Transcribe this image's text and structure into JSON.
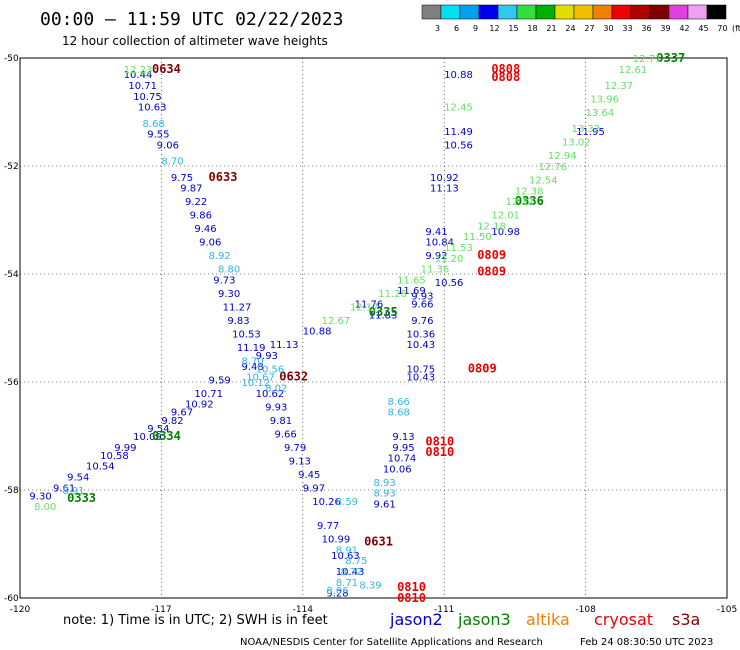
{
  "header": {
    "title": "00:00 — 11:59 UTC 02/22/2023",
    "subtitle": "12 hour collection of altimeter wave heights"
  },
  "colorbar": {
    "unit": "(ft)",
    "colors": [
      "#808080",
      "#00e0f0",
      "#00a0f0",
      "#0000ee",
      "#30c8f0",
      "#30e040",
      "#00b000",
      "#e0e000",
      "#f0c000",
      "#f08000",
      "#ee0000",
      "#b00000",
      "#800000",
      "#e040e0",
      "#f0a0f0",
      "#000000"
    ],
    "labels": [
      "3",
      "6",
      "9",
      "12",
      "15",
      "18",
      "21",
      "24",
      "27",
      "30",
      "33",
      "36",
      "39",
      "42",
      "45",
      "70"
    ]
  },
  "chart_data": {
    "type": "scatter",
    "title": "00:00 — 11:59 UTC 02/22/2023",
    "xlim": [
      -120,
      -105
    ],
    "ylim": [
      -60,
      -50
    ],
    "x_ticks": [
      "-120",
      "-117",
      "-114",
      "-111",
      "-108",
      "-105"
    ],
    "y_ticks": [
      "-50",
      "-52",
      "-54",
      "-56",
      "-58",
      "-60"
    ],
    "x_tick_values": [
      -120,
      -117,
      -114,
      -111,
      -108,
      -105
    ],
    "y_tick_values": [
      -50,
      -52,
      -54,
      -56,
      -58,
      -60
    ],
    "series": [
      {
        "name": "jason2",
        "color": "#0000cc",
        "points": [
          {
            "x": -117.8,
            "y": -50.3,
            "v": "10.44"
          },
          {
            "x": -117.7,
            "y": -50.5,
            "v": "10.71"
          },
          {
            "x": -117.6,
            "y": -50.7,
            "v": "10.75"
          },
          {
            "x": -117.5,
            "y": -50.9,
            "v": "10.63"
          },
          {
            "x": -117.3,
            "y": -51.4,
            "v": "9.55"
          },
          {
            "x": -117.1,
            "y": -51.6,
            "v": "9.06"
          },
          {
            "x": -116.8,
            "y": -52.2,
            "v": "9.75"
          },
          {
            "x": -116.6,
            "y": -52.4,
            "v": "9.87"
          },
          {
            "x": -116.5,
            "y": -52.65,
            "v": "9.22"
          },
          {
            "x": -116.4,
            "y": -52.9,
            "v": "9.86"
          },
          {
            "x": -116.3,
            "y": -53.15,
            "v": "9.46"
          },
          {
            "x": -116.2,
            "y": -53.4,
            "v": "9.06"
          },
          {
            "x": -115.9,
            "y": -54.1,
            "v": "9.73"
          },
          {
            "x": -115.8,
            "y": -54.35,
            "v": "9.30"
          },
          {
            "x": -115.7,
            "y": -54.6,
            "v": "11.27"
          },
          {
            "x": -115.6,
            "y": -54.85,
            "v": "9.83"
          },
          {
            "x": -115.5,
            "y": -55.1,
            "v": "10.53"
          },
          {
            "x": -115.4,
            "y": -55.35,
            "v": "11.19"
          },
          {
            "x": -115.0,
            "y": -56.2,
            "v": "10.62"
          },
          {
            "x": -114.8,
            "y": -56.45,
            "v": "9.93"
          },
          {
            "x": -114.7,
            "y": -56.7,
            "v": "9.81"
          },
          {
            "x": -114.6,
            "y": -56.95,
            "v": "9.66"
          },
          {
            "x": -114.4,
            "y": -57.2,
            "v": "9.79"
          },
          {
            "x": -114.3,
            "y": -57.45,
            "v": "9.13"
          },
          {
            "x": -114.1,
            "y": -57.7,
            "v": "9.45"
          },
          {
            "x": -114.0,
            "y": -57.95,
            "v": "9.97"
          },
          {
            "x": -113.8,
            "y": -58.2,
            "v": "10.26"
          },
          {
            "x": -113.7,
            "y": -58.65,
            "v": "9.77"
          },
          {
            "x": -113.6,
            "y": -58.9,
            "v": "10.99"
          },
          {
            "x": -113.4,
            "y": -59.2,
            "v": "10.63"
          },
          {
            "x": -113.3,
            "y": -59.5,
            "v": "10.43"
          },
          {
            "x": -113.5,
            "y": -59.9,
            "v": "9.28"
          },
          {
            "x": -116.0,
            "y": -55.95,
            "v": "9.59"
          },
          {
            "x": -116.3,
            "y": -56.2,
            "v": "10.71"
          },
          {
            "x": -116.5,
            "y": -56.4,
            "v": "10.92"
          },
          {
            "x": -116.8,
            "y": -56.55,
            "v": "9.67"
          },
          {
            "x": -117.0,
            "y": -56.7,
            "v": "9.82"
          },
          {
            "x": -117.3,
            "y": -56.85,
            "v": "9.54"
          },
          {
            "x": -117.6,
            "y": -57.0,
            "v": "10.09"
          },
          {
            "x": -118.0,
            "y": -57.2,
            "v": "9.99"
          },
          {
            "x": -118.3,
            "y": -57.35,
            "v": "10.58"
          },
          {
            "x": -118.6,
            "y": -57.55,
            "v": "10.54"
          },
          {
            "x": -119.0,
            "y": -57.75,
            "v": "9.54"
          },
          {
            "x": -119.3,
            "y": -57.95,
            "v": "9.61"
          },
          {
            "x": -119.8,
            "y": -58.1,
            "v": "9.30"
          },
          {
            "x": -115.3,
            "y": -55.7,
            "v": "9.48"
          },
          {
            "x": -115.0,
            "y": -55.5,
            "v": "9.93"
          },
          {
            "x": -114.7,
            "y": -55.3,
            "v": "11.13"
          },
          {
            "x": -114.0,
            "y": -55.05,
            "v": "10.88"
          },
          {
            "x": -112.9,
            "y": -54.55,
            "v": "11.76"
          },
          {
            "x": -112.6,
            "y": -54.75,
            "v": "11.83"
          },
          {
            "x": -112.0,
            "y": -54.3,
            "v": "11.69"
          },
          {
            "x": -111.7,
            "y": -54.4,
            "v": "9.93"
          },
          {
            "x": -111.7,
            "y": -54.55,
            "v": "9.66"
          },
          {
            "x": -111.7,
            "y": -54.85,
            "v": "9.76"
          },
          {
            "x": -111.8,
            "y": -55.1,
            "v": "10.36"
          },
          {
            "x": -111.8,
            "y": -55.3,
            "v": "10.43"
          },
          {
            "x": -111.8,
            "y": -55.75,
            "v": "10.75"
          },
          {
            "x": -111.8,
            "y": -55.9,
            "v": "10.43"
          },
          {
            "x": -111.2,
            "y": -54.15,
            "v": "10.56"
          },
          {
            "x": -111.4,
            "y": -53.65,
            "v": "9.92"
          },
          {
            "x": -111.4,
            "y": -53.4,
            "v": "10.84"
          },
          {
            "x": -111.4,
            "y": -53.2,
            "v": "9.41"
          },
          {
            "x": -111.3,
            "y": -52.4,
            "v": "11.13"
          },
          {
            "x": -111.3,
            "y": -52.2,
            "v": "10.92"
          },
          {
            "x": -111.0,
            "y": -51.6,
            "v": "10.56"
          },
          {
            "x": -111.0,
            "y": -51.35,
            "v": "11.49"
          },
          {
            "x": -110.0,
            "y": -53.2,
            "v": "10.98"
          },
          {
            "x": -108.2,
            "y": -51.35,
            "v": "11.95"
          },
          {
            "x": -111.0,
            "y": -50.3,
            "v": "10.88"
          },
          {
            "x": -112.1,
            "y": -57.0,
            "v": "9.13"
          },
          {
            "x": -112.1,
            "y": -57.2,
            "v": "9.95"
          },
          {
            "x": -112.2,
            "y": -57.4,
            "v": "10.74"
          },
          {
            "x": -112.3,
            "y": -57.6,
            "v": "10.06"
          },
          {
            "x": -112.5,
            "y": -58.25,
            "v": "9.61"
          }
        ]
      },
      {
        "name": "jason3",
        "color": "#008000",
        "points": []
      },
      {
        "name": "altika",
        "color": "#f08000",
        "points": []
      },
      {
        "name": "cryosat",
        "color": "#ee0000",
        "points": [
          {
            "x": -110.0,
            "y": -50.2,
            "v": "0808"
          },
          {
            "x": -110.0,
            "y": -50.35,
            "v": "0808"
          },
          {
            "x": -110.3,
            "y": -53.65,
            "v": "0809"
          },
          {
            "x": -110.3,
            "y": -53.95,
            "v": "0809"
          },
          {
            "x": -110.5,
            "y": -55.75,
            "v": "0809"
          },
          {
            "x": -111.4,
            "y": -57.1,
            "v": "0810"
          },
          {
            "x": -111.4,
            "y": -57.3,
            "v": "0810"
          },
          {
            "x": -112.0,
            "y": -59.8,
            "v": "0810"
          },
          {
            "x": -112.0,
            "y": -60.0,
            "v": "0810"
          }
        ]
      },
      {
        "name": "s3a",
        "color": "#800000",
        "points": [
          {
            "x": -117.2,
            "y": -50.2,
            "v": "0634"
          },
          {
            "x": -116.0,
            "y": -52.2,
            "v": "0633"
          },
          {
            "x": -114.5,
            "y": -55.9,
            "v": "0632"
          },
          {
            "x": -112.7,
            "y": -58.95,
            "v": "0631"
          }
        ]
      },
      {
        "name": "jason3-labels",
        "color": "#008000",
        "points": [
          {
            "x": -106.5,
            "y": -50.0,
            "v": "0337"
          },
          {
            "x": -109.5,
            "y": -52.65,
            "v": "0336"
          },
          {
            "x": -112.6,
            "y": -54.7,
            "v": "0335"
          },
          {
            "x": -117.2,
            "y": -57.0,
            "v": "0334"
          },
          {
            "x": -119.0,
            "y": -58.15,
            "v": "0333"
          }
        ]
      },
      {
        "name": "light-green",
        "color": "#66e066",
        "points": [
          {
            "x": -107.0,
            "y": -50.0,
            "v": "12.71"
          },
          {
            "x": -107.3,
            "y": -50.2,
            "v": "12.61"
          },
          {
            "x": -107.6,
            "y": -50.5,
            "v": "12.37"
          },
          {
            "x": -107.9,
            "y": -50.75,
            "v": "13.96"
          },
          {
            "x": -108.0,
            "y": -51.0,
            "v": "13.64"
          },
          {
            "x": -108.3,
            "y": -51.3,
            "v": "13.32"
          },
          {
            "x": -108.5,
            "y": -51.55,
            "v": "13.02"
          },
          {
            "x": -108.8,
            "y": -51.8,
            "v": "12.94"
          },
          {
            "x": -109.0,
            "y": -52.0,
            "v": "12.76"
          },
          {
            "x": -109.2,
            "y": -52.25,
            "v": "12.54"
          },
          {
            "x": -109.5,
            "y": -52.45,
            "v": "12.38"
          },
          {
            "x": -109.7,
            "y": -52.65,
            "v": "12.32"
          },
          {
            "x": -110.0,
            "y": -52.9,
            "v": "12.01"
          },
          {
            "x": -110.3,
            "y": -53.1,
            "v": "12.18"
          },
          {
            "x": -110.6,
            "y": -53.3,
            "v": "11.50"
          },
          {
            "x": -111.0,
            "y": -53.5,
            "v": "11.53"
          },
          {
            "x": -111.2,
            "y": -53.7,
            "v": "11.20"
          },
          {
            "x": -111.5,
            "y": -53.9,
            "v": "11.36"
          },
          {
            "x": -112.0,
            "y": -54.1,
            "v": "11.65"
          },
          {
            "x": -112.4,
            "y": -54.35,
            "v": "11.26"
          },
          {
            "x": -113.0,
            "y": -54.6,
            "v": "12.17"
          },
          {
            "x": -113.6,
            "y": -54.85,
            "v": "12.67"
          },
          {
            "x": -117.8,
            "y": -50.2,
            "v": "12.23"
          },
          {
            "x": -111.0,
            "y": -50.9,
            "v": "12.45"
          },
          {
            "x": -119.7,
            "y": -58.3,
            "v": "8.00"
          }
        ]
      },
      {
        "name": "cyan",
        "color": "#30b8e0",
        "points": [
          {
            "x": -117.4,
            "y": -51.2,
            "v": "8.68"
          },
          {
            "x": -117.0,
            "y": -51.9,
            "v": "8.70"
          },
          {
            "x": -116.0,
            "y": -53.65,
            "v": "8.92"
          },
          {
            "x": -115.8,
            "y": -53.9,
            "v": "8.80"
          },
          {
            "x": -115.3,
            "y": -55.6,
            "v": "8.70"
          },
          {
            "x": -115.0,
            "y": -55.75,
            "v": "10.56"
          },
          {
            "x": -115.2,
            "y": -55.9,
            "v": "10.67"
          },
          {
            "x": -115.3,
            "y": -56.0,
            "v": "10.12"
          },
          {
            "x": -114.8,
            "y": -56.1,
            "v": "8.02"
          },
          {
            "x": -112.2,
            "y": -56.35,
            "v": "8.66"
          },
          {
            "x": -112.2,
            "y": -56.55,
            "v": "8.68"
          },
          {
            "x": -112.5,
            "y": -57.85,
            "v": "8.93"
          },
          {
            "x": -112.5,
            "y": -58.05,
            "v": "8.93"
          },
          {
            "x": -113.3,
            "y": -58.2,
            "v": "8.59"
          },
          {
            "x": -113.3,
            "y": -59.1,
            "v": "8.91"
          },
          {
            "x": -113.1,
            "y": -59.3,
            "v": "8.75"
          },
          {
            "x": -113.2,
            "y": -59.5,
            "v": "8.72"
          },
          {
            "x": -113.3,
            "y": -59.7,
            "v": "8.71"
          },
          {
            "x": -112.8,
            "y": -59.75,
            "v": "8.39"
          },
          {
            "x": -113.5,
            "y": -59.85,
            "v": "8.06"
          },
          {
            "x": -119.1,
            "y": -58.0,
            "v": "8.91"
          }
        ]
      }
    ]
  },
  "legend": {
    "items": [
      {
        "label": "jason2",
        "color": "#0000cc"
      },
      {
        "label": "jason3",
        "color": "#008000"
      },
      {
        "label": "altika",
        "color": "#f08000"
      },
      {
        "label": "cryosat",
        "color": "#ee0000"
      },
      {
        "label": "s3a",
        "color": "#800000"
      }
    ]
  },
  "footer": {
    "note": "note:  1) Time is in UTC;  2) SWH is in feet",
    "credit": "NOAA/NESDIS Center for Satellite Applications and Research",
    "timestamp": "Feb 24 08:30:50 UTC 2023"
  }
}
